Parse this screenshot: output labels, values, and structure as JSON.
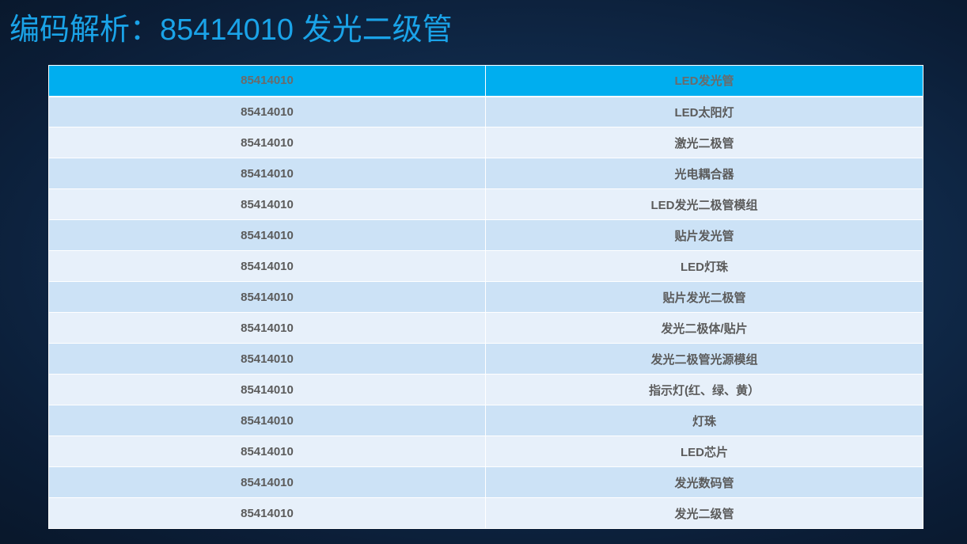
{
  "title": "编码解析：85414010 发光二级管",
  "table": {
    "header": {
      "code": "85414010",
      "name": "LED发光管"
    },
    "rows": [
      {
        "code": "85414010",
        "name": "LED太阳灯"
      },
      {
        "code": "85414010",
        "name": "激光二极管"
      },
      {
        "code": "85414010",
        "name": "光电耦合器"
      },
      {
        "code": "85414010",
        "name": "LED发光二极管模组"
      },
      {
        "code": "85414010",
        "name": "贴片发光管"
      },
      {
        "code": "85414010",
        "name": "LED灯珠"
      },
      {
        "code": "85414010",
        "name": "贴片发光二极管"
      },
      {
        "code": "85414010",
        "name": "发光二极体/贴片"
      },
      {
        "code": "85414010",
        "name": "发光二极管光源模组"
      },
      {
        "code": "85414010",
        "name": "指示灯(红、绿、黄）"
      },
      {
        "code": "85414010",
        "name": "灯珠"
      },
      {
        "code": "85414010",
        "name": "LED芯片"
      },
      {
        "code": "85414010",
        "name": "发光数码管"
      },
      {
        "code": "85414010",
        "name": "发光二级管"
      }
    ]
  },
  "colors": {
    "title": "#1aa3e8",
    "header_fill": "#00aeef",
    "row_fill_dark": "#cce2f6",
    "row_fill_light": "#e7f0fa",
    "cell_text": "#5b5b5b",
    "background": "#0b1d36"
  }
}
